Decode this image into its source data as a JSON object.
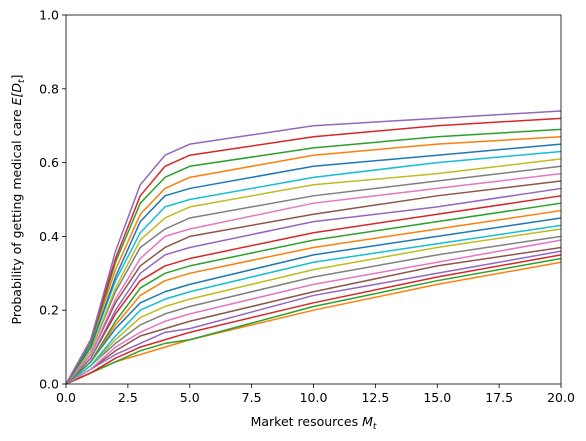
{
  "chart_data": {
    "type": "line",
    "xlabel": {
      "text": "Market resources ",
      "var": "M",
      "sub": "t"
    },
    "ylabel": {
      "text": "Probability of getting medical care ",
      "var": "E[D",
      "sub": "t",
      "close": "]"
    },
    "x": [
      0,
      1,
      2,
      3,
      4,
      5,
      10,
      15,
      20
    ],
    "xlim": [
      0,
      20
    ],
    "ylim": [
      0,
      1
    ],
    "xticks": [
      {
        "value": 0,
        "label": "0.0"
      },
      2.5,
      {
        "value": 5,
        "label": "5.0"
      },
      7.5,
      {
        "value": 10,
        "label": "10.0"
      },
      12.5,
      {
        "value": 15,
        "label": "15.0"
      },
      17.5,
      {
        "value": 20,
        "label": "20.0"
      }
    ],
    "yticks": [
      {
        "value": 0,
        "label": "0.0"
      },
      0.2,
      0.4,
      0.6,
      0.8,
      {
        "value": 1,
        "label": "1.0"
      }
    ],
    "series": [
      {
        "color": "#ff7f0e",
        "values": [
          0,
          0.03,
          0.06,
          0.08,
          0.1,
          0.12,
          0.2,
          0.27,
          0.33
        ]
      },
      {
        "color": "#2ca02c",
        "values": [
          0,
          0.03,
          0.06,
          0.09,
          0.11,
          0.12,
          0.21,
          0.28,
          0.34
        ]
      },
      {
        "color": "#d62728",
        "values": [
          0,
          0.03,
          0.07,
          0.1,
          0.12,
          0.14,
          0.22,
          0.29,
          0.35
        ]
      },
      {
        "color": "#9467bd",
        "values": [
          0,
          0.04,
          0.08,
          0.11,
          0.14,
          0.15,
          0.24,
          0.3,
          0.36
        ]
      },
      {
        "color": "#8c564b",
        "values": [
          0,
          0.04,
          0.09,
          0.13,
          0.15,
          0.17,
          0.25,
          0.32,
          0.37
        ]
      },
      {
        "color": "#e377c2",
        "values": [
          0,
          0.04,
          0.1,
          0.14,
          0.17,
          0.19,
          0.27,
          0.33,
          0.39
        ]
      },
      {
        "color": "#7f7f7f",
        "values": [
          0,
          0.05,
          0.11,
          0.16,
          0.19,
          0.21,
          0.29,
          0.35,
          0.4
        ]
      },
      {
        "color": "#bcbd22",
        "values": [
          0,
          0.05,
          0.12,
          0.18,
          0.21,
          0.23,
          0.31,
          0.37,
          0.42
        ]
      },
      {
        "color": "#17becf",
        "values": [
          0,
          0.05,
          0.13,
          0.2,
          0.23,
          0.25,
          0.33,
          0.38,
          0.43
        ]
      },
      {
        "color": "#1f77b4",
        "values": [
          0,
          0.06,
          0.15,
          0.22,
          0.25,
          0.27,
          0.35,
          0.4,
          0.45
        ]
      },
      {
        "color": "#ff7f0e",
        "values": [
          0,
          0.06,
          0.16,
          0.24,
          0.28,
          0.3,
          0.37,
          0.42,
          0.47
        ]
      },
      {
        "color": "#2ca02c",
        "values": [
          0,
          0.06,
          0.17,
          0.26,
          0.3,
          0.32,
          0.39,
          0.44,
          0.49
        ]
      },
      {
        "color": "#d62728",
        "values": [
          0,
          0.07,
          0.19,
          0.28,
          0.32,
          0.34,
          0.41,
          0.46,
          0.51
        ]
      },
      {
        "color": "#9467bd",
        "values": [
          0,
          0.07,
          0.2,
          0.3,
          0.35,
          0.37,
          0.44,
          0.48,
          0.53
        ]
      },
      {
        "color": "#8c564b",
        "values": [
          0,
          0.08,
          0.22,
          0.32,
          0.37,
          0.4,
          0.46,
          0.51,
          0.55
        ]
      },
      {
        "color": "#e377c2",
        "values": [
          0,
          0.08,
          0.23,
          0.34,
          0.4,
          0.42,
          0.49,
          0.53,
          0.57
        ]
      },
      {
        "color": "#7f7f7f",
        "values": [
          0,
          0.09,
          0.25,
          0.37,
          0.42,
          0.45,
          0.51,
          0.55,
          0.59
        ]
      },
      {
        "color": "#bcbd22",
        "values": [
          0,
          0.09,
          0.26,
          0.39,
          0.45,
          0.48,
          0.54,
          0.57,
          0.61
        ]
      },
      {
        "color": "#17becf",
        "values": [
          0,
          0.1,
          0.28,
          0.41,
          0.48,
          0.5,
          0.56,
          0.6,
          0.63
        ]
      },
      {
        "color": "#1f77b4",
        "values": [
          0,
          0.1,
          0.29,
          0.44,
          0.51,
          0.53,
          0.59,
          0.62,
          0.65
        ]
      },
      {
        "color": "#ff7f0e",
        "values": [
          0,
          0.11,
          0.31,
          0.46,
          0.53,
          0.56,
          0.62,
          0.65,
          0.67
        ]
      },
      {
        "color": "#2ca02c",
        "values": [
          0,
          0.11,
          0.33,
          0.49,
          0.56,
          0.59,
          0.64,
          0.67,
          0.69
        ]
      },
      {
        "color": "#d62728",
        "values": [
          0,
          0.12,
          0.34,
          0.51,
          0.59,
          0.62,
          0.67,
          0.7,
          0.72
        ]
      },
      {
        "color": "#9467bd",
        "values": [
          0,
          0.12,
          0.36,
          0.54,
          0.62,
          0.65,
          0.7,
          0.72,
          0.74
        ]
      }
    ]
  }
}
